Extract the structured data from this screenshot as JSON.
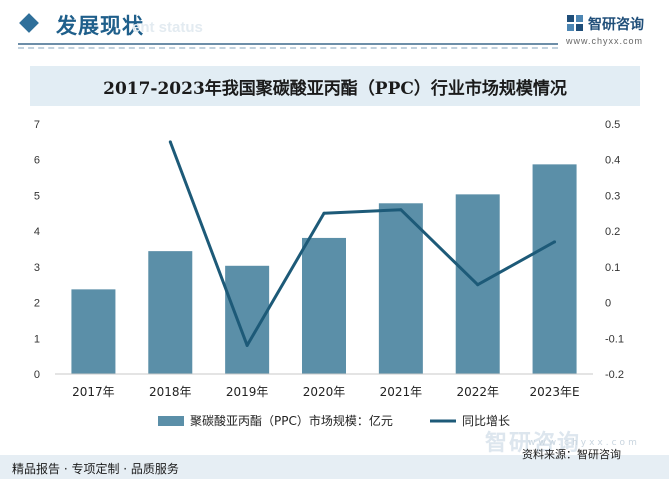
{
  "header": {
    "section_title": "发展现状",
    "section_subtitle": "ent status",
    "logo_text": "智研咨询",
    "logo_url": "www.chyxx.com"
  },
  "chart_data": {
    "type": "bar",
    "title": "2017-2023年我国聚碳酸亚丙酯（PPC）行业市场规模情况",
    "categories": [
      "2017年",
      "2018年",
      "2019年",
      "2020年",
      "2021年",
      "2022年",
      "2023年E"
    ],
    "series": [
      {
        "name": "聚碳酸亚丙酯（PPC）市场规模：亿元",
        "type": "bar",
        "axis": "left",
        "values": [
          2.37,
          3.44,
          3.03,
          3.81,
          4.78,
          5.03,
          5.87
        ]
      },
      {
        "name": "同比增长",
        "type": "line",
        "axis": "right",
        "values": [
          null,
          0.45,
          -0.12,
          0.25,
          0.26,
          0.05,
          0.17
        ]
      }
    ],
    "ylim_left": [
      0,
      7
    ],
    "yticks_left": [
      "0",
      "1",
      "2",
      "3",
      "4",
      "5",
      "6",
      "7"
    ],
    "ylim_right": [
      -0.2,
      0.5
    ],
    "yticks_right": [
      "-0.2",
      "-0.1",
      "0",
      "0.1",
      "0.2",
      "0.3",
      "0.4",
      "0.5"
    ],
    "grid": false,
    "legend_position": "bottom",
    "colors": {
      "bar": "#5b8fa8",
      "line": "#1d5a78"
    }
  },
  "footer": {
    "left_text": "精品报告 · 专项定制 · 品质服务",
    "source": "资料来源：智研咨询"
  },
  "watermark": {
    "text": "智研咨询",
    "url": "www.chyxx.com"
  }
}
